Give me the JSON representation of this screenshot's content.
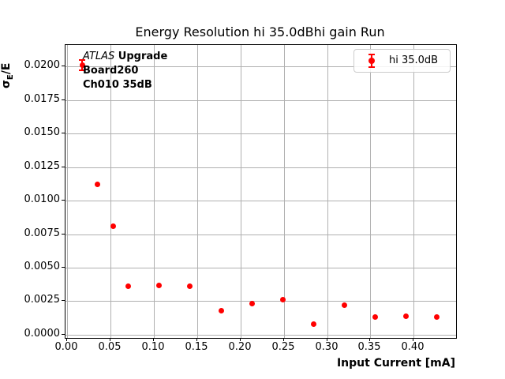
{
  "title": "Energy Resolution hi 35.0dBhi gain Run",
  "axes": {
    "xlabel": "Input Current [mA]",
    "ylabel_base": "σ",
    "ylabel_sub": "E",
    "ylabel_rest": "/E"
  },
  "annotation": {
    "line1_italic": "ATLAS",
    "line1_bold": " Upgrade",
    "line2": "Board260",
    "line3": "Ch010 35dB"
  },
  "legend": {
    "label": "hi 35.0dB"
  },
  "colors": {
    "marker": "#ff0000",
    "grid": "#b0b0b0",
    "spine": "#000000",
    "legend_border": "#cccccc"
  },
  "chart_data": {
    "type": "scatter",
    "title": "Energy Resolution hi 35.0dBhi gain Run",
    "xlabel": "Input Current [mA]",
    "ylabel": "σ_E/E",
    "grid": true,
    "legend_position": "upper right",
    "legend_entries": [
      "hi 35.0dB"
    ],
    "annotations": [
      "ATLAS Upgrade",
      "Board260",
      "Ch010 35dB"
    ],
    "marker_color": "#ff0000",
    "xlim": [
      -0.0015,
      0.4487
    ],
    "ylim": [
      -0.00024,
      0.0216
    ],
    "x_ticks": [
      0.0,
      0.05,
      0.1,
      0.15,
      0.2,
      0.25,
      0.3,
      0.35,
      0.4
    ],
    "x_tick_labels": [
      "0.00",
      "0.05",
      "0.10",
      "0.15",
      "0.20",
      "0.25",
      "0.30",
      "0.35",
      "0.40"
    ],
    "y_ticks": [
      0.0,
      0.0025,
      0.005,
      0.0075,
      0.01,
      0.0125,
      0.015,
      0.0175,
      0.02
    ],
    "y_tick_labels": [
      "0.0000",
      "0.0025",
      "0.0050",
      "0.0075",
      "0.0100",
      "0.0125",
      "0.0150",
      "0.0175",
      "0.0200"
    ],
    "series": [
      {
        "name": "hi 35.0dB",
        "x": [
          0.0178,
          0.0356,
          0.0533,
          0.0711,
          0.1067,
          0.1422,
          0.1778,
          0.2133,
          0.2489,
          0.2844,
          0.32,
          0.3556,
          0.3911,
          0.4267
        ],
        "y": [
          0.0201,
          0.0112,
          0.0081,
          0.0036,
          0.0037,
          0.0036,
          0.0018,
          0.0023,
          0.0026,
          0.0008,
          0.0022,
          0.0013,
          0.0014,
          0.0013
        ],
        "yerr": [
          0.00045,
          0,
          0,
          0,
          0,
          0,
          0,
          0,
          0,
          0,
          0,
          0,
          0,
          0
        ]
      }
    ]
  }
}
